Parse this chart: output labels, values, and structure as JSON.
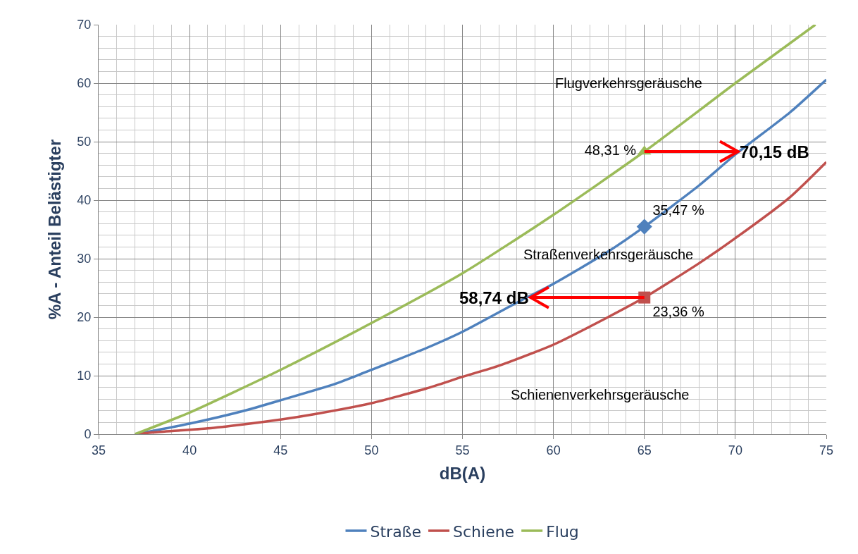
{
  "chart_data": {
    "type": "line",
    "xlabel": "dB(A)",
    "ylabel": "%A - Anteil Belästigter",
    "xlim": [
      35,
      75
    ],
    "xticks": [
      35,
      40,
      45,
      50,
      55,
      60,
      65,
      70,
      75
    ],
    "ylim": [
      0,
      70
    ],
    "yticks": [
      0,
      10,
      20,
      30,
      40,
      50,
      60,
      70
    ],
    "grid": true,
    "legend": "bottom",
    "marker": "none",
    "series": [
      {
        "name": "Straße",
        "color": "#4f81bd",
        "x": [
          37,
          40,
          43,
          45,
          48,
          50,
          53,
          55,
          58,
          60,
          63,
          65,
          68,
          70,
          73,
          75
        ],
        "values": [
          0,
          1.8,
          4,
          5.8,
          8.6,
          11,
          14.7,
          17.5,
          22.5,
          25.7,
          31.2,
          35.47,
          42.5,
          47.8,
          55,
          60.6
        ]
      },
      {
        "name": "Schiene",
        "color": "#c0504d",
        "x": [
          37,
          38,
          41,
          43,
          45,
          47,
          50,
          53,
          55,
          57,
          60,
          63,
          65,
          68,
          70,
          73,
          75
        ],
        "values": [
          0,
          0.3,
          1.0,
          1.7,
          2.5,
          3.5,
          5.3,
          7.8,
          9.8,
          11.7,
          15.3,
          20,
          23.36,
          29.2,
          33.5,
          40.5,
          46.5
        ]
      },
      {
        "name": "Flug",
        "color": "#9bbb59",
        "x": [
          37,
          40,
          45,
          50,
          55,
          60,
          65,
          70,
          74.4
        ],
        "values": [
          0,
          3.7,
          11,
          19,
          27.5,
          37.5,
          48.31,
          60,
          70
        ]
      },
      {
        "type": "scatter",
        "marker": "triangle",
        "color": "#9bbb59",
        "x": [
          65
        ],
        "values": [
          48.31
        ],
        "value_labels": [
          "48,31 %"
        ]
      },
      {
        "type": "scatter",
        "marker": "diamond",
        "color": "#4f81bd",
        "x": [
          65
        ],
        "values": [
          35.47
        ],
        "value_labels": [
          "35,47 %"
        ]
      },
      {
        "type": "scatter",
        "marker": "square",
        "color": "#c0504d",
        "x": [
          65
        ],
        "values": [
          23.36
        ],
        "value_labels": [
          "23,36 %"
        ]
      }
    ],
    "annotations": [
      {
        "text": "70,15 dB",
        "x": 70.15,
        "y": 48.31
      },
      {
        "text": "58,74 dB",
        "x": 58.74,
        "y": 23.36
      },
      {
        "text": "Flugverkehrsgeräusche",
        "x": 70,
        "y": 60
      },
      {
        "text": "Straßenverkehrsgeräusche",
        "x": 63,
        "y": 31.2
      },
      {
        "text": "Schienenverkehrsgeräusche",
        "x": 57,
        "y": 11.7
      }
    ]
  }
}
